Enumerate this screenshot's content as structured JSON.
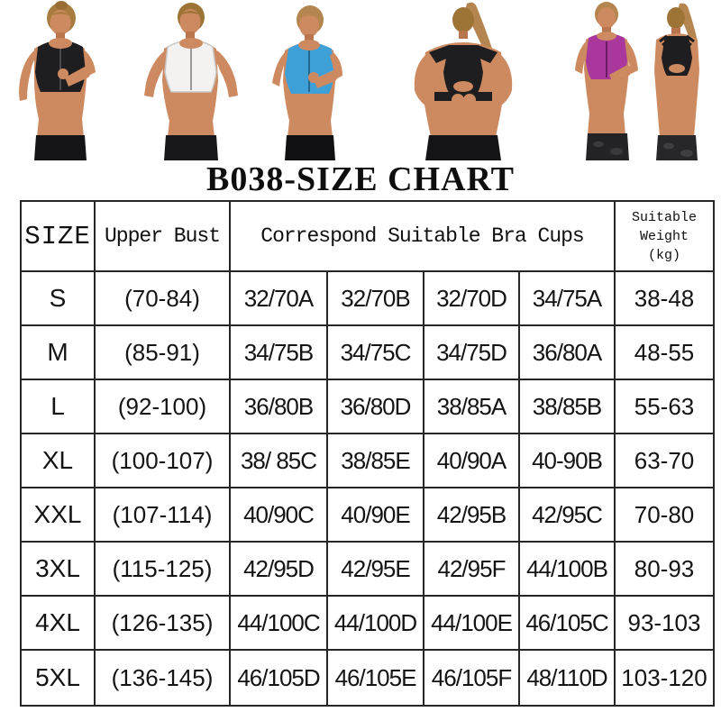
{
  "page": {
    "background": "#ffffff"
  },
  "title": "B038-SIZE CHART",
  "photos": [
    {
      "name": "model-front-black-zip-bra",
      "bra_color": "#1e1e20"
    },
    {
      "name": "model-front-white-zip-bra",
      "bra_color": "#f3f2f0"
    },
    {
      "name": "model-front-blue-zip-bra",
      "bra_color": "#3fa0d8"
    },
    {
      "name": "model-back-black-bra",
      "bra_color": "#1e1e20"
    },
    {
      "name": "models-pair-purple-front-black-back",
      "front_bra_color": "#a9379c",
      "back_bra_color": "#1e1e20"
    }
  ],
  "table": {
    "headers": {
      "size": "SIZE",
      "upper_bust": "Upper Bust",
      "cups": "Correspond Suitable Bra Cups",
      "weight": "Suitable Weight (kg)"
    },
    "rows": [
      {
        "size": "S",
        "upper_bust": "(70-84)",
        "cups": [
          "32/70A",
          "32/70B",
          "32/70D",
          "34/75A"
        ],
        "weight": "38-48"
      },
      {
        "size": "M",
        "upper_bust": "(85-91)",
        "cups": [
          "34/75B",
          "34/75C",
          "34/75D",
          "36/80A"
        ],
        "weight": "48-55"
      },
      {
        "size": "L",
        "upper_bust": "(92-100)",
        "cups": [
          "36/80B",
          "36/80D",
          "38/85A",
          "38/85B"
        ],
        "weight": "55-63"
      },
      {
        "size": "XL",
        "upper_bust": "(100-107)",
        "cups": [
          "38/ 85C",
          "38/85E",
          "40/90A",
          "40-90B"
        ],
        "weight": "63-70"
      },
      {
        "size": "XXL",
        "upper_bust": "(107-114)",
        "cups": [
          "40/90C",
          "40/90E",
          "42/95B",
          "42/95C"
        ],
        "weight": "70-80"
      },
      {
        "size": "3XL",
        "upper_bust": "(115-125)",
        "cups": [
          "42/95D",
          "42/95E",
          "42/95F",
          "44/100B"
        ],
        "weight": "80-93"
      },
      {
        "size": "4XL",
        "upper_bust": "(126-135)",
        "cups": [
          "44/100C",
          "44/100D",
          "44/100E",
          "46/105C"
        ],
        "weight": "93-103"
      },
      {
        "size": "5XL",
        "upper_bust": "(136-145)",
        "cups": [
          "46/105D",
          "46/105E",
          "46/105F",
          "48/110D"
        ],
        "weight": "103-120"
      }
    ]
  }
}
